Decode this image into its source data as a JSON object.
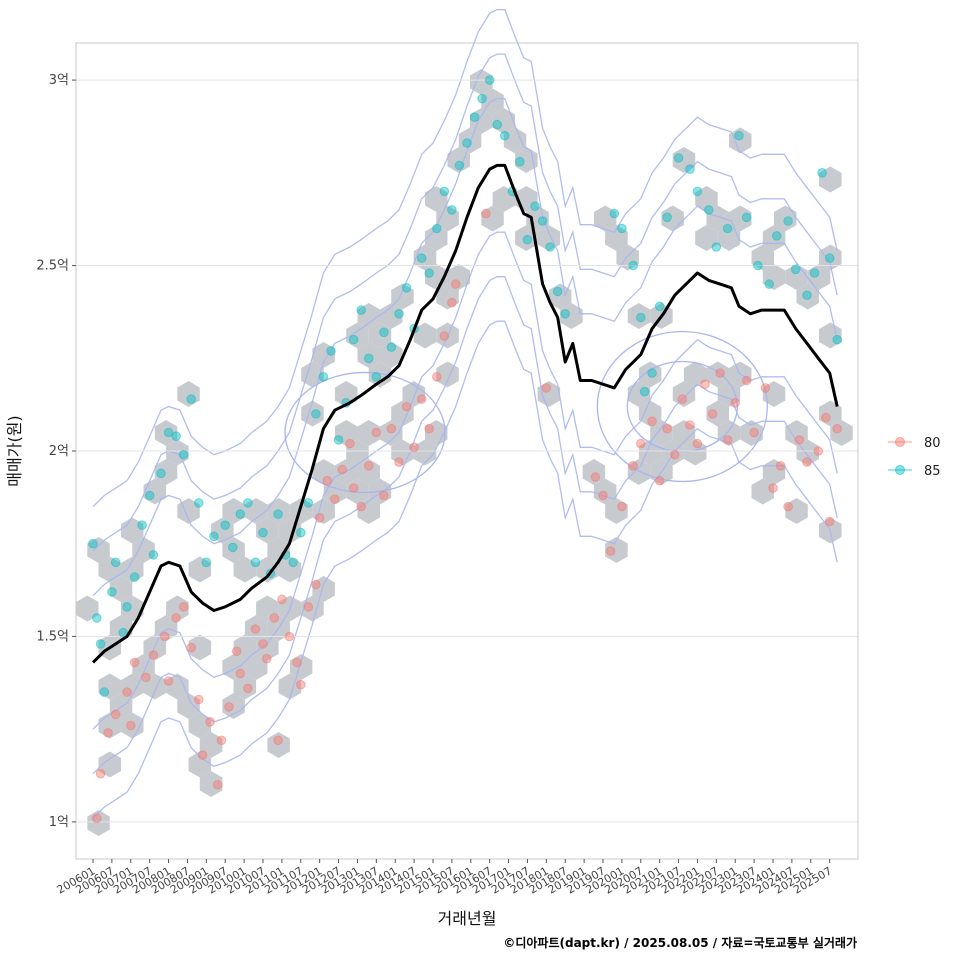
{
  "chart_data": {
    "type": "scatter",
    "xlabel": "거래년월",
    "ylabel": "매매가(원)",
    "caption": "©디아파트(dapt.kr) / 2025.08.05 / 자료=국토교통부 실거래가",
    "x_ticks": [
      "200601",
      "200607",
      "200701",
      "200707",
      "200801",
      "200807",
      "200901",
      "200907",
      "201001",
      "201007",
      "201101",
      "201107",
      "201201",
      "201207",
      "201301",
      "201307",
      "201401",
      "201407",
      "201501",
      "201507",
      "201601",
      "201607",
      "201701",
      "201707",
      "201801",
      "201807",
      "201901",
      "201907",
      "202001",
      "202007",
      "202101",
      "202107",
      "202201",
      "202207",
      "202301",
      "202307",
      "202401",
      "202407",
      "202501",
      "202507"
    ],
    "y_ticks": [
      {
        "value": 1.0,
        "label": "1억"
      },
      {
        "value": 1.5,
        "label": "1.5억"
      },
      {
        "value": 2.0,
        "label": "2억"
      },
      {
        "value": 2.5,
        "label": "2.5억"
      },
      {
        "value": 3.0,
        "label": "3억"
      }
    ],
    "ylim": [
      0.9,
      3.1
    ],
    "grid": true,
    "legend_position": "right",
    "legend": [
      {
        "name": "80",
        "color": "#F8766D"
      },
      {
        "name": "85",
        "color": "#00BFC4"
      }
    ],
    "trend_line": {
      "name": "moving-average",
      "color": "#000000",
      "points": [
        [
          2006.0,
          1.43
        ],
        [
          2006.3,
          1.46
        ],
        [
          2006.6,
          1.48
        ],
        [
          2006.9,
          1.5
        ],
        [
          2007.2,
          1.55
        ],
        [
          2007.5,
          1.62
        ],
        [
          2007.8,
          1.69
        ],
        [
          2008.0,
          1.7
        ],
        [
          2008.3,
          1.69
        ],
        [
          2008.6,
          1.62
        ],
        [
          2008.9,
          1.59
        ],
        [
          2009.2,
          1.57
        ],
        [
          2009.5,
          1.58
        ],
        [
          2009.9,
          1.6
        ],
        [
          2010.2,
          1.63
        ],
        [
          2010.6,
          1.66
        ],
        [
          2010.9,
          1.7
        ],
        [
          2011.2,
          1.75
        ],
        [
          2011.5,
          1.85
        ],
        [
          2011.8,
          1.95
        ],
        [
          2012.1,
          2.06
        ],
        [
          2012.4,
          2.11
        ],
        [
          2012.8,
          2.13
        ],
        [
          2013.1,
          2.15
        ],
        [
          2013.5,
          2.18
        ],
        [
          2013.8,
          2.2
        ],
        [
          2014.1,
          2.23
        ],
        [
          2014.4,
          2.3
        ],
        [
          2014.7,
          2.38
        ],
        [
          2015.0,
          2.41
        ],
        [
          2015.3,
          2.47
        ],
        [
          2015.6,
          2.54
        ],
        [
          2015.9,
          2.63
        ],
        [
          2016.2,
          2.71
        ],
        [
          2016.5,
          2.76
        ],
        [
          2016.7,
          2.77
        ],
        [
          2016.9,
          2.77
        ],
        [
          2017.2,
          2.69
        ],
        [
          2017.4,
          2.64
        ],
        [
          2017.6,
          2.63
        ],
        [
          2017.9,
          2.45
        ],
        [
          2018.1,
          2.4
        ],
        [
          2018.3,
          2.36
        ],
        [
          2018.5,
          2.24
        ],
        [
          2018.7,
          2.29
        ],
        [
          2018.9,
          2.19
        ],
        [
          2019.2,
          2.19
        ],
        [
          2019.5,
          2.18
        ],
        [
          2019.8,
          2.17
        ],
        [
          2020.1,
          2.22
        ],
        [
          2020.5,
          2.26
        ],
        [
          2020.8,
          2.33
        ],
        [
          2021.1,
          2.37
        ],
        [
          2021.4,
          2.42
        ],
        [
          2021.7,
          2.45
        ],
        [
          2022.0,
          2.48
        ],
        [
          2022.3,
          2.46
        ],
        [
          2022.6,
          2.45
        ],
        [
          2022.9,
          2.44
        ],
        [
          2023.1,
          2.39
        ],
        [
          2023.4,
          2.37
        ],
        [
          2023.7,
          2.38
        ],
        [
          2024.0,
          2.38
        ],
        [
          2024.3,
          2.38
        ],
        [
          2024.6,
          2.33
        ],
        [
          2024.9,
          2.29
        ],
        [
          2025.2,
          2.25
        ],
        [
          2025.5,
          2.21
        ],
        [
          2025.7,
          2.12
        ]
      ]
    },
    "series": [
      {
        "name": "80",
        "color": "#F8766D",
        "points": [
          [
            2006.1,
            1.01
          ],
          [
            2006.2,
            1.13
          ],
          [
            2006.4,
            1.24
          ],
          [
            2006.6,
            1.29
          ],
          [
            2006.9,
            1.35
          ],
          [
            2007.0,
            1.26
          ],
          [
            2007.1,
            1.43
          ],
          [
            2007.4,
            1.39
          ],
          [
            2007.6,
            1.45
          ],
          [
            2007.9,
            1.5
          ],
          [
            2008.0,
            1.38
          ],
          [
            2008.2,
            1.55
          ],
          [
            2008.4,
            1.58
          ],
          [
            2008.6,
            1.47
          ],
          [
            2008.8,
            1.33
          ],
          [
            2008.9,
            1.18
          ],
          [
            2009.1,
            1.27
          ],
          [
            2009.3,
            1.1
          ],
          [
            2009.4,
            1.22
          ],
          [
            2009.6,
            1.31
          ],
          [
            2009.8,
            1.46
          ],
          [
            2009.9,
            1.4
          ],
          [
            2010.1,
            1.36
          ],
          [
            2010.3,
            1.52
          ],
          [
            2010.5,
            1.48
          ],
          [
            2010.6,
            1.44
          ],
          [
            2010.8,
            1.55
          ],
          [
            2010.9,
            1.22
          ],
          [
            2011.0,
            1.6
          ],
          [
            2011.2,
            1.5
          ],
          [
            2011.4,
            1.43
          ],
          [
            2011.5,
            1.37
          ],
          [
            2011.7,
            1.58
          ],
          [
            2011.9,
            1.64
          ],
          [
            2012.0,
            1.82
          ],
          [
            2012.2,
            1.92
          ],
          [
            2012.4,
            1.87
          ],
          [
            2012.6,
            1.95
          ],
          [
            2012.8,
            2.02
          ],
          [
            2012.9,
            1.9
          ],
          [
            2013.1,
            1.85
          ],
          [
            2013.3,
            1.96
          ],
          [
            2013.5,
            2.05
          ],
          [
            2013.7,
            1.88
          ],
          [
            2013.9,
            2.06
          ],
          [
            2014.1,
            1.97
          ],
          [
            2014.3,
            2.12
          ],
          [
            2014.5,
            2.01
          ],
          [
            2014.7,
            2.14
          ],
          [
            2014.9,
            2.06
          ],
          [
            2015.1,
            2.2
          ],
          [
            2015.3,
            2.31
          ],
          [
            2015.5,
            2.4
          ],
          [
            2015.6,
            2.45
          ],
          [
            2016.4,
            2.64
          ],
          [
            2018.0,
            2.17
          ],
          [
            2019.3,
            1.93
          ],
          [
            2019.5,
            1.88
          ],
          [
            2019.7,
            1.73
          ],
          [
            2020.0,
            1.85
          ],
          [
            2020.3,
            1.96
          ],
          [
            2020.5,
            2.02
          ],
          [
            2020.8,
            2.08
          ],
          [
            2021.0,
            1.92
          ],
          [
            2021.2,
            2.06
          ],
          [
            2021.4,
            1.99
          ],
          [
            2021.6,
            2.14
          ],
          [
            2021.8,
            2.07
          ],
          [
            2022.0,
            2.02
          ],
          [
            2022.2,
            2.18
          ],
          [
            2022.4,
            2.1
          ],
          [
            2022.6,
            2.21
          ],
          [
            2022.8,
            2.03
          ],
          [
            2023.0,
            2.13
          ],
          [
            2023.3,
            2.19
          ],
          [
            2023.5,
            2.05
          ],
          [
            2023.8,
            2.17
          ],
          [
            2024.0,
            1.9
          ],
          [
            2024.2,
            1.96
          ],
          [
            2024.4,
            1.85
          ],
          [
            2024.7,
            2.03
          ],
          [
            2024.9,
            1.97
          ],
          [
            2025.2,
            2.0
          ],
          [
            2025.4,
            2.09
          ],
          [
            2025.5,
            1.81
          ],
          [
            2025.7,
            2.06
          ]
        ]
      },
      {
        "name": "85",
        "color": "#00BFC4",
        "points": [
          [
            2006.0,
            1.75
          ],
          [
            2006.1,
            1.55
          ],
          [
            2006.2,
            1.48
          ],
          [
            2006.3,
            1.35
          ],
          [
            2006.5,
            1.62
          ],
          [
            2006.6,
            1.7
          ],
          [
            2006.8,
            1.51
          ],
          [
            2006.9,
            1.58
          ],
          [
            2007.1,
            1.66
          ],
          [
            2007.3,
            1.8
          ],
          [
            2007.5,
            1.88
          ],
          [
            2007.6,
            1.72
          ],
          [
            2007.8,
            1.94
          ],
          [
            2008.0,
            2.05
          ],
          [
            2008.2,
            2.04
          ],
          [
            2008.4,
            1.99
          ],
          [
            2008.6,
            2.14
          ],
          [
            2008.8,
            1.86
          ],
          [
            2009.0,
            1.7
          ],
          [
            2009.2,
            1.77
          ],
          [
            2009.5,
            1.8
          ],
          [
            2009.7,
            1.74
          ],
          [
            2009.9,
            1.83
          ],
          [
            2010.1,
            1.86
          ],
          [
            2010.3,
            1.7
          ],
          [
            2010.5,
            1.78
          ],
          [
            2010.7,
            1.67
          ],
          [
            2010.9,
            1.83
          ],
          [
            2011.1,
            1.72
          ],
          [
            2011.3,
            1.7
          ],
          [
            2011.5,
            1.78
          ],
          [
            2011.7,
            1.86
          ],
          [
            2011.9,
            2.1
          ],
          [
            2012.1,
            2.2
          ],
          [
            2012.3,
            2.27
          ],
          [
            2012.5,
            2.03
          ],
          [
            2012.7,
            2.13
          ],
          [
            2012.9,
            2.3
          ],
          [
            2013.1,
            2.38
          ],
          [
            2013.3,
            2.25
          ],
          [
            2013.5,
            2.2
          ],
          [
            2013.7,
            2.32
          ],
          [
            2013.9,
            2.28
          ],
          [
            2014.1,
            2.37
          ],
          [
            2014.3,
            2.44
          ],
          [
            2014.5,
            2.33
          ],
          [
            2014.7,
            2.52
          ],
          [
            2014.9,
            2.48
          ],
          [
            2015.1,
            2.6
          ],
          [
            2015.3,
            2.7
          ],
          [
            2015.5,
            2.65
          ],
          [
            2015.7,
            2.77
          ],
          [
            2015.9,
            2.83
          ],
          [
            2016.1,
            2.9
          ],
          [
            2016.3,
            2.95
          ],
          [
            2016.5,
            3.0
          ],
          [
            2016.7,
            2.88
          ],
          [
            2016.9,
            2.85
          ],
          [
            2017.1,
            2.7
          ],
          [
            2017.3,
            2.78
          ],
          [
            2017.5,
            2.57
          ],
          [
            2017.7,
            2.66
          ],
          [
            2017.9,
            2.62
          ],
          [
            2018.1,
            2.55
          ],
          [
            2018.3,
            2.43
          ],
          [
            2018.5,
            2.37
          ],
          [
            2019.8,
            2.64
          ],
          [
            2020.0,
            2.6
          ],
          [
            2020.3,
            2.5
          ],
          [
            2020.5,
            2.36
          ],
          [
            2020.6,
            2.16
          ],
          [
            2020.8,
            2.21
          ],
          [
            2021.0,
            2.39
          ],
          [
            2021.2,
            2.63
          ],
          [
            2021.5,
            2.79
          ],
          [
            2021.8,
            2.76
          ],
          [
            2022.0,
            2.7
          ],
          [
            2022.3,
            2.65
          ],
          [
            2022.5,
            2.55
          ],
          [
            2022.8,
            2.6
          ],
          [
            2023.1,
            2.85
          ],
          [
            2023.3,
            2.63
          ],
          [
            2023.6,
            2.5
          ],
          [
            2023.9,
            2.45
          ],
          [
            2024.1,
            2.58
          ],
          [
            2024.4,
            2.62
          ],
          [
            2024.6,
            2.49
          ],
          [
            2024.9,
            2.42
          ],
          [
            2025.1,
            2.48
          ],
          [
            2025.3,
            2.75
          ],
          [
            2025.5,
            2.52
          ],
          [
            2025.7,
            2.3
          ]
        ]
      }
    ]
  }
}
